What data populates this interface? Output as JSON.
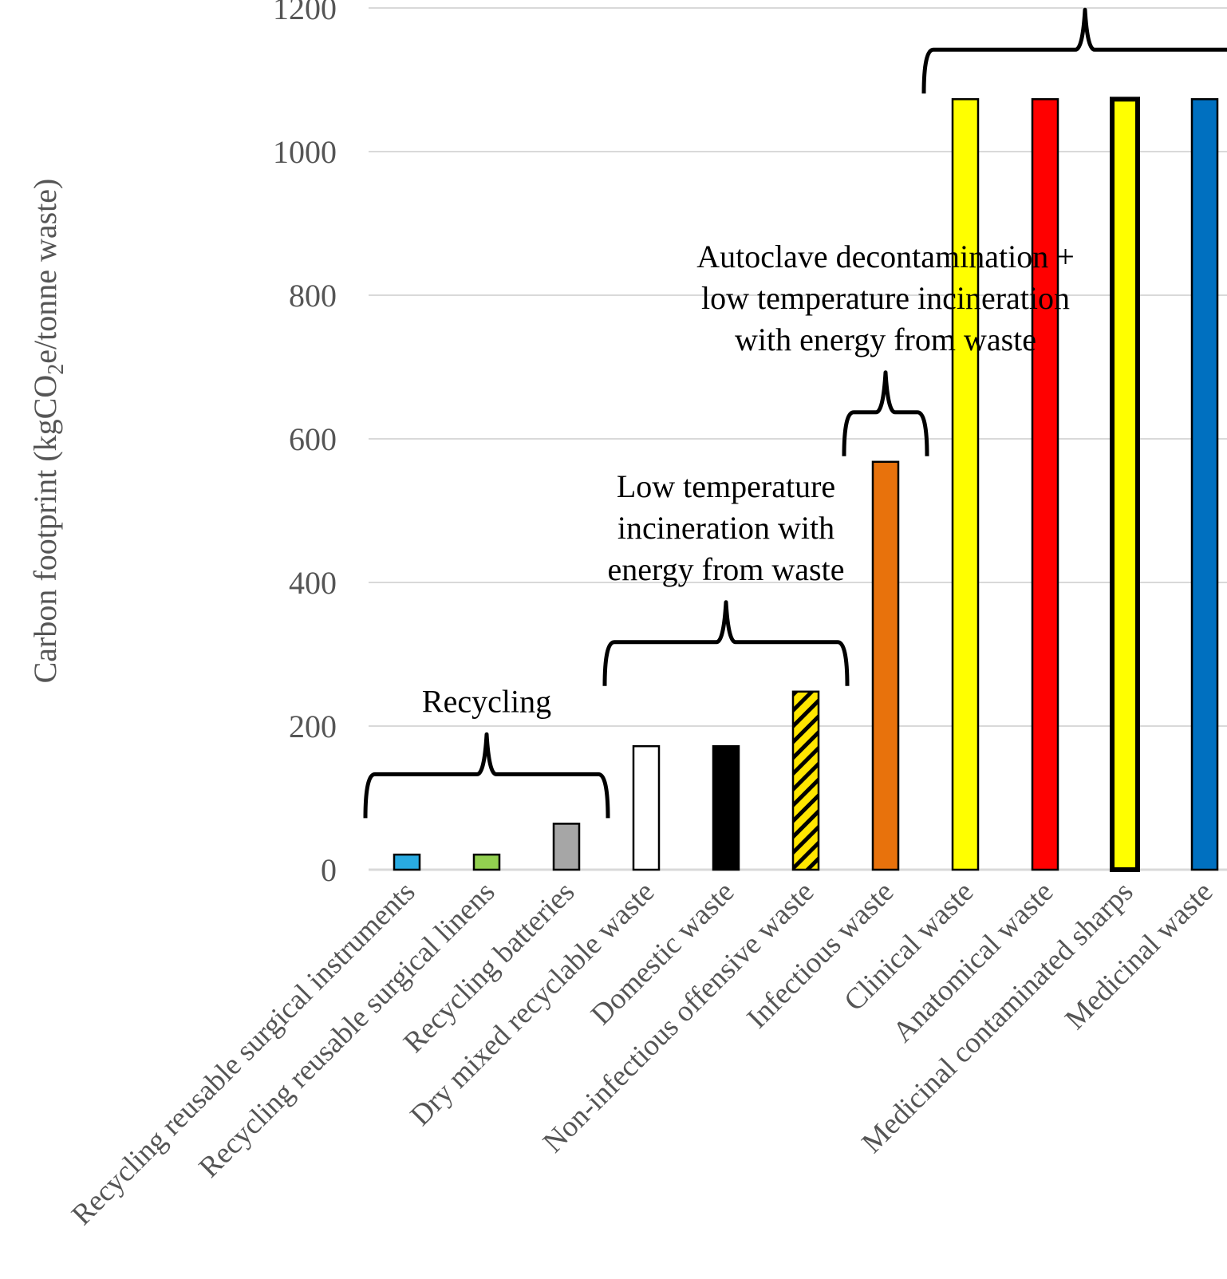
{
  "chart_data": {
    "type": "bar",
    "ylabel": "Carbon footprint (kgCO2e/tonne waste)",
    "ylabel_parts": {
      "pre": "Carbon footprint (kgCO",
      "sub": "2",
      "post": "e/tonne waste)"
    },
    "ylim": [
      0,
      1200
    ],
    "yticks": [
      0,
      200,
      400,
      600,
      800,
      1000,
      1200
    ],
    "grid": true,
    "categories": [
      "Recycling reusable surgical instruments",
      "Recycling reusable surgical linens",
      "Recycling batteries",
      "Dry mixed recyclable waste",
      "Domestic waste",
      "Non-infectious offensive waste",
      "Infectious waste",
      "Clinical waste",
      "Anatomical waste",
      "Medicinal contaminated sharps",
      "Medicinal waste"
    ],
    "values": [
      21,
      21,
      64,
      172,
      172,
      248,
      568,
      1073,
      1073,
      1073,
      1073
    ],
    "bar_colors": [
      "#29abe2",
      "#92d050",
      "#a6a6a6",
      "#ffffff",
      "#000000",
      "#ffe600",
      "#e8720c",
      "#ffff00",
      "#ff0000",
      "#ffff00",
      "#0070c0"
    ],
    "bar_styles": [
      "plain",
      "plain",
      "plain",
      "plain",
      "plain",
      "hatched",
      "plain",
      "plain",
      "plain",
      "thick-border",
      "plain"
    ],
    "groups": [
      {
        "label_lines": [
          "Recycling"
        ],
        "from": 0,
        "to": 2
      },
      {
        "label_lines": [
          "Low temperature",
          "incineration with",
          "energy from waste"
        ],
        "from": 3,
        "to": 5
      },
      {
        "label_lines": [
          "Autoclave decontamination +",
          "low temperature incineration",
          "with energy from waste"
        ],
        "from": 6,
        "to": 6
      },
      {
        "label_lines": [],
        "from": 7,
        "to": 10
      }
    ]
  }
}
